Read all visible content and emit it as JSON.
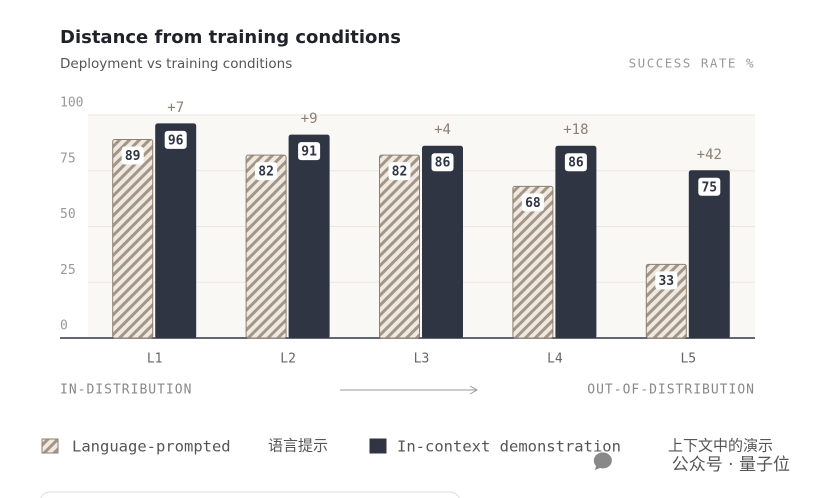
{
  "chart_data": {
    "type": "bar",
    "title": "Distance from training conditions",
    "subtitle": "Deployment vs training conditions",
    "y_label": "SUCCESS RATE %",
    "categories": [
      "L1",
      "L2",
      "L3",
      "L4",
      "L5"
    ],
    "series": [
      {
        "name": "Language-prompted",
        "translated_name": "语言提示",
        "color": "#a39686",
        "hatch": true,
        "values": [
          89,
          82,
          82,
          68,
          33
        ]
      },
      {
        "name": "In-context demonstration",
        "translated_name": "上下文中的演示",
        "color": "#2f3542",
        "hatch": false,
        "values": [
          96,
          91,
          86,
          86,
          75
        ]
      }
    ],
    "annotations": [
      "+7",
      "+9",
      "+4",
      "+18",
      "+42"
    ],
    "x_range_labels": [
      "IN-DISTRIBUTION",
      "OUT-OF-DISTRIBUTION"
    ],
    "ylim": [
      0,
      100
    ],
    "yticks": [
      0,
      25,
      50,
      75,
      100
    ],
    "grid": true,
    "watermark": "公众号 · 量子位"
  }
}
